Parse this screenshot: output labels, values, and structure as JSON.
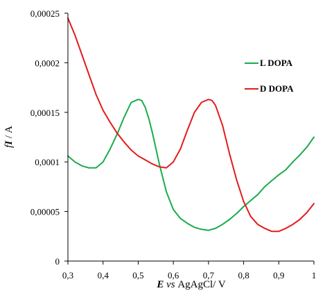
{
  "chart_data": {
    "type": "line",
    "xlabel": {
      "var": "E",
      "mid": " vs ",
      "rest": "AgAgCl/ V"
    },
    "ylabel": {
      "prefix": "f",
      "var": "I",
      "rest": " / A"
    },
    "xlim": [
      0.3,
      1.0
    ],
    "ylim": [
      0,
      0.00025
    ],
    "x_ticks": [
      0.3,
      0.4,
      0.5,
      0.6,
      0.7,
      0.8,
      0.9,
      1.0
    ],
    "x_tick_labels": [
      "0,3",
      "0,4",
      "0,5",
      "0,6",
      "0,7",
      "0,8",
      "0,9",
      "1"
    ],
    "y_ticks": [
      0,
      5e-05,
      0.0001,
      0.00015,
      0.0002,
      0.00025
    ],
    "y_tick_labels": [
      "0",
      "0,00005",
      "0,0001",
      "0,00015",
      "0,0002",
      "0,00025"
    ],
    "grid": false,
    "legend_position": "right",
    "series": [
      {
        "name": "L DOPA",
        "color": "#1aab4b",
        "x": [
          0.3,
          0.32,
          0.34,
          0.36,
          0.38,
          0.4,
          0.42,
          0.44,
          0.46,
          0.48,
          0.5,
          0.51,
          0.52,
          0.53,
          0.54,
          0.55,
          0.56,
          0.58,
          0.6,
          0.62,
          0.64,
          0.66,
          0.68,
          0.7,
          0.72,
          0.74,
          0.76,
          0.78,
          0.8,
          0.82,
          0.84,
          0.86,
          0.88,
          0.9,
          0.92,
          0.94,
          0.96,
          0.98,
          1.0
        ],
        "y": [
          0.000106,
          0.0001,
          9.6e-05,
          9.4e-05,
          9.4e-05,
          0.0001,
          0.000113,
          0.000128,
          0.000145,
          0.00016,
          0.000163,
          0.000162,
          0.000155,
          0.000144,
          0.00013,
          0.000114,
          9.8e-05,
          7e-05,
          5.2e-05,
          4.3e-05,
          3.8e-05,
          3.4e-05,
          3.2e-05,
          3.1e-05,
          3.3e-05,
          3.7e-05,
          4.2e-05,
          4.8e-05,
          5.5e-05,
          6.1e-05,
          6.7e-05,
          7.5e-05,
          8.1e-05,
          8.7e-05,
          9.2e-05,
          0.0001,
          0.000107,
          0.000115,
          0.000125
        ]
      },
      {
        "name": "D DOPA",
        "color": "#e31b1b",
        "x": [
          0.3,
          0.32,
          0.34,
          0.36,
          0.38,
          0.4,
          0.42,
          0.44,
          0.46,
          0.48,
          0.5,
          0.52,
          0.54,
          0.56,
          0.58,
          0.6,
          0.62,
          0.64,
          0.66,
          0.68,
          0.7,
          0.71,
          0.72,
          0.74,
          0.76,
          0.78,
          0.8,
          0.82,
          0.84,
          0.86,
          0.88,
          0.9,
          0.92,
          0.94,
          0.96,
          0.98,
          1.0
        ],
        "y": [
          0.000245,
          0.000228,
          0.000208,
          0.000188,
          0.000168,
          0.000152,
          0.00014,
          0.000129,
          0.00012,
          0.000112,
          0.000106,
          0.000102,
          9.8e-05,
          9.5e-05,
          9.4e-05,
          0.0001,
          0.000113,
          0.000132,
          0.00015,
          0.00016,
          0.000163,
          0.000162,
          0.000157,
          0.000137,
          0.000108,
          8.2e-05,
          6e-05,
          4.5e-05,
          3.7e-05,
          3.3e-05,
          3e-05,
          3e-05,
          3.3e-05,
          3.7e-05,
          4.2e-05,
          4.9e-05,
          5.8e-05
        ]
      }
    ]
  }
}
